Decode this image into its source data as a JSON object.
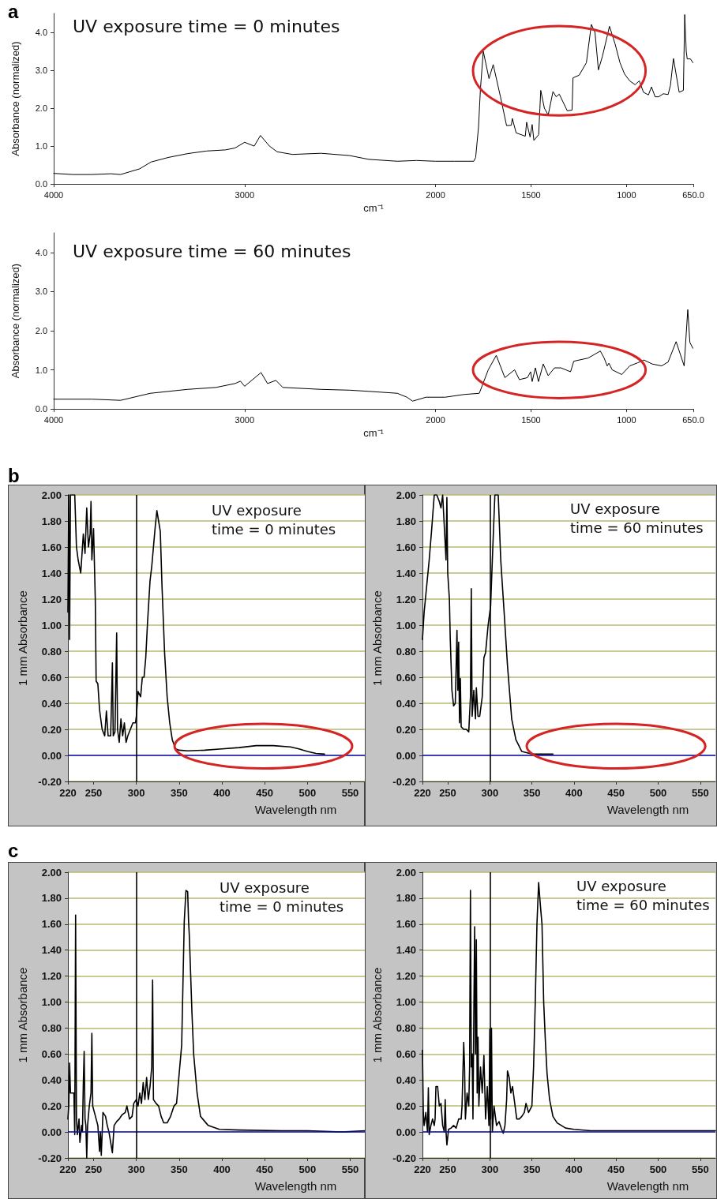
{
  "chart_data": [
    {
      "type": "line",
      "title": "UV exposure time = 0 minutes",
      "xlabel": "cm⁻¹",
      "ylabel": "Absorbance (normalized)",
      "annotations": [
        "a"
      ],
      "color": "#000000",
      "xlim": [
        4000,
        650
      ],
      "xticks": [
        4000,
        3000,
        2000,
        1500,
        1000,
        {
          "value": 650,
          "label": "650.0"
        }
      ],
      "ylim": [
        0,
        4.5
      ],
      "yticks": [
        {
          "value": 0,
          "label": "0.0"
        },
        {
          "value": 1,
          "label": "1.0"
        },
        {
          "value": 2,
          "label": "2.0"
        },
        {
          "value": 3,
          "label": "3.0"
        },
        {
          "value": 4,
          "label": "4.0"
        }
      ],
      "x": [
        4000,
        3900,
        3800,
        3700,
        3650,
        3550,
        3490,
        3400,
        3300,
        3200,
        3100,
        3050,
        3000,
        2950,
        2917,
        2870,
        2830,
        2750,
        2600,
        2450,
        2350,
        2200,
        2100,
        2000,
        1900,
        1800,
        1790,
        1775,
        1765,
        1750,
        1720,
        1698,
        1660,
        1628,
        1603,
        1598,
        1578,
        1530,
        1523,
        1505,
        1494,
        1485,
        1460,
        1449,
        1430,
        1410,
        1385,
        1368,
        1352,
        1310,
        1285,
        1280,
        1248,
        1210,
        1184,
        1165,
        1147,
        1126,
        1089,
        1060,
        1034,
        1010,
        983,
        955,
        933,
        911,
        885,
        869,
        850,
        832,
        807,
        782,
        770,
        754,
        724,
        702,
        695,
        687,
        682,
        665,
        652
      ],
      "values": [
        0.28,
        0.25,
        0.25,
        0.27,
        0.25,
        0.4,
        0.58,
        0.7,
        0.8,
        0.87,
        0.9,
        0.95,
        1.1,
        1.0,
        1.28,
        1.0,
        0.85,
        0.78,
        0.81,
        0.75,
        0.65,
        0.6,
        0.62,
        0.6,
        0.6,
        0.6,
        0.7,
        1.5,
        2.5,
        3.5,
        2.78,
        3.15,
        2.3,
        1.54,
        1.55,
        1.73,
        1.35,
        1.26,
        1.63,
        1.24,
        1.57,
        1.15,
        1.3,
        2.47,
        2.0,
        1.82,
        2.44,
        2.3,
        2.37,
        1.93,
        1.95,
        2.8,
        2.87,
        3.2,
        4.21,
        4.0,
        3.01,
        3.37,
        4.16,
        3.7,
        3.2,
        2.9,
        2.72,
        2.62,
        2.72,
        2.42,
        2.35,
        2.56,
        2.3,
        2.3,
        2.38,
        2.36,
        2.6,
        3.31,
        2.42,
        2.47,
        4.47,
        3.5,
        3.3,
        3.3,
        3.2
      ]
    },
    {
      "type": "line",
      "title": "UV exposure time = 60 minutes",
      "xlabel": "cm⁻¹",
      "ylabel": "Absorbance (normalized)",
      "color": "#000000",
      "xlim": [
        4000,
        650
      ],
      "xticks": [
        4000,
        3000,
        2000,
        1500,
        1000,
        {
          "value": 650,
          "label": "650.0"
        }
      ],
      "ylim": [
        0,
        4.5
      ],
      "yticks": [
        {
          "value": 0,
          "label": "0.0"
        },
        {
          "value": 1,
          "label": "1.0"
        },
        {
          "value": 2,
          "label": "2.0"
        },
        {
          "value": 3,
          "label": "3.0"
        },
        {
          "value": 4,
          "label": "4.0"
        }
      ],
      "x": [
        4000,
        3800,
        3650,
        3494,
        3300,
        3150,
        3050,
        3022,
        3000,
        2914,
        2880,
        2836,
        2800,
        2600,
        2450,
        2350,
        2200,
        2150,
        2120,
        2050,
        1950,
        1850,
        1771,
        1724,
        1682,
        1637,
        1586,
        1561,
        1519,
        1502,
        1494,
        1477,
        1461,
        1436,
        1410,
        1377,
        1343,
        1293,
        1276,
        1201,
        1137,
        1117,
        1101,
        1092,
        1075,
        1025,
        983,
        941,
        908,
        866,
        816,
        782,
        740,
        698,
        679,
        668,
        652
      ],
      "values": [
        0.25,
        0.25,
        0.22,
        0.4,
        0.5,
        0.55,
        0.65,
        0.71,
        0.58,
        0.93,
        0.65,
        0.73,
        0.55,
        0.5,
        0.48,
        0.45,
        0.4,
        0.3,
        0.2,
        0.3,
        0.3,
        0.37,
        0.4,
        1.0,
        1.37,
        0.8,
        1.0,
        0.75,
        0.8,
        0.95,
        0.7,
        1.05,
        0.7,
        1.15,
        0.85,
        1.05,
        1.05,
        0.95,
        1.22,
        1.3,
        1.48,
        1.3,
        1.1,
        1.17,
        1.0,
        0.88,
        1.1,
        1.18,
        1.25,
        1.15,
        1.1,
        1.2,
        1.72,
        1.1,
        2.54,
        1.7,
        1.55
      ]
    },
    {
      "type": "line",
      "title": "UV exposure",
      "subtitle": "time = 0 minutes",
      "xlabel": "Wavelength nm",
      "ylabel": "1 mm Absorbance",
      "annotations": [
        "b"
      ],
      "color": "#000000",
      "grid": "y",
      "ref_lines": [
        {
          "axis": "y",
          "value": 0,
          "color": "#1010c0"
        },
        {
          "axis": "x",
          "value": 300,
          "color": "#000000"
        }
      ],
      "xlim": [
        220,
        568
      ],
      "xticks": [
        220,
        250,
        300,
        350,
        400,
        450,
        500,
        550
      ],
      "ylim": [
        -0.2,
        2.0
      ],
      "yticks": [
        {
          "value": -0.2,
          "label": "-0.20"
        },
        {
          "value": 0,
          "label": "0.00"
        },
        {
          "value": 0.2,
          "label": "0.20"
        },
        {
          "value": 0.4,
          "label": "0.40"
        },
        {
          "value": 0.6,
          "label": "0.60"
        },
        {
          "value": 0.8,
          "label": "0.80"
        },
        {
          "value": 1,
          "label": "1.00"
        },
        {
          "value": 1.2,
          "label": "1.20"
        },
        {
          "value": 1.4,
          "label": "1.40"
        },
        {
          "value": 1.6,
          "label": "1.60"
        },
        {
          "value": 1.8,
          "label": "1.80"
        },
        {
          "value": 2,
          "label": "2.00"
        }
      ],
      "x": [
        220,
        221,
        222,
        223,
        225,
        228,
        230,
        232,
        235,
        238,
        240,
        242,
        244,
        246,
        247,
        248,
        250,
        252,
        253,
        255,
        257,
        260,
        263,
        265,
        267,
        270,
        272,
        273,
        275,
        277,
        278,
        280,
        282,
        284,
        286,
        288,
        290,
        293,
        296,
        299,
        300,
        302,
        305,
        307,
        309,
        311,
        313,
        316,
        318,
        320,
        322,
        324,
        326,
        328,
        330,
        333,
        336,
        339,
        342,
        346,
        350,
        360,
        380,
        400,
        420,
        440,
        460,
        480,
        490,
        500,
        510,
        520
      ],
      "values": [
        1.1,
        2.0,
        0.89,
        2.0,
        2.0,
        2.0,
        1.6,
        1.5,
        1.4,
        1.7,
        1.55,
        1.9,
        1.6,
        1.7,
        1.95,
        1.5,
        1.74,
        1.2,
        0.57,
        0.55,
        0.35,
        0.2,
        0.15,
        0.34,
        0.15,
        0.15,
        0.71,
        0.15,
        0.18,
        0.94,
        0.2,
        0.1,
        0.28,
        0.15,
        0.25,
        0.1,
        0.15,
        0.2,
        0.25,
        0.25,
        0.3,
        0.49,
        0.45,
        0.6,
        0.6,
        0.75,
        1.01,
        1.34,
        1.45,
        1.6,
        1.75,
        1.88,
        1.8,
        1.72,
        1.3,
        0.79,
        0.45,
        0.25,
        0.12,
        0.05,
        0.04,
        0.035,
        0.04,
        0.05,
        0.06,
        0.075,
        0.075,
        0.065,
        0.05,
        0.03,
        0.015,
        0.01
      ]
    },
    {
      "type": "line",
      "title": "UV exposure",
      "subtitle": "time = 60 minutes",
      "xlabel": "Wavelength nm",
      "ylabel": "1 mm Absorbance",
      "color": "#000000",
      "grid": "y",
      "ref_lines": [
        {
          "axis": "y",
          "value": 0,
          "color": "#1010c0"
        },
        {
          "axis": "x",
          "value": 300,
          "color": "#000000"
        }
      ],
      "xlim": [
        220,
        568
      ],
      "xticks": [
        220,
        250,
        300,
        350,
        400,
        450,
        500,
        550
      ],
      "ylim": [
        -0.2,
        2.0
      ],
      "yticks": [
        {
          "value": -0.2,
          "label": "-0.20"
        },
        {
          "value": 0,
          "label": "0.00"
        },
        {
          "value": 0.2,
          "label": "0.20"
        },
        {
          "value": 0.4,
          "label": "0.40"
        },
        {
          "value": 0.6,
          "label": "0.60"
        },
        {
          "value": 0.8,
          "label": "0.80"
        },
        {
          "value": 1,
          "label": "1.00"
        },
        {
          "value": 1.2,
          "label": "1.20"
        },
        {
          "value": 1.4,
          "label": "1.40"
        },
        {
          "value": 1.6,
          "label": "1.60"
        },
        {
          "value": 1.8,
          "label": "1.80"
        },
        {
          "value": 2,
          "label": "2.00"
        }
      ],
      "x": [
        220,
        222,
        225,
        228,
        231,
        234,
        237,
        240,
        242,
        244,
        246,
        248,
        249,
        250,
        252,
        253,
        255,
        257,
        259,
        261,
        262,
        263,
        264,
        265,
        266,
        269,
        272,
        275,
        277,
        278,
        279,
        281,
        283,
        284,
        286,
        288,
        291,
        293,
        295,
        298,
        301,
        303,
        306,
        310,
        313,
        317,
        321,
        326,
        331,
        338,
        350,
        375
      ],
      "values": [
        0.89,
        1.1,
        1.3,
        1.5,
        1.74,
        2.0,
        2.0,
        1.95,
        1.9,
        2.0,
        1.75,
        1.5,
        1.98,
        1.4,
        1.2,
        0.9,
        0.5,
        0.38,
        0.4,
        0.96,
        0.5,
        0.87,
        0.25,
        0.59,
        0.22,
        0.2,
        0.2,
        0.18,
        0.45,
        1.28,
        0.3,
        0.5,
        0.28,
        0.52,
        0.3,
        0.3,
        0.45,
        0.75,
        0.79,
        1.0,
        1.15,
        1.5,
        2.0,
        2.0,
        1.5,
        1.1,
        0.69,
        0.28,
        0.12,
        0.03,
        0.01,
        0.01
      ]
    },
    {
      "type": "line",
      "title": "UV exposure",
      "subtitle": "time = 0 minutes",
      "xlabel": "Wavelength nm",
      "ylabel": "1 mm Absorbance",
      "annotations": [
        "c"
      ],
      "color": "#000000",
      "grid": "y",
      "ref_lines": [
        {
          "axis": "y",
          "value": 0,
          "color": "#1010c0"
        },
        {
          "axis": "x",
          "value": 300,
          "color": "#000000"
        }
      ],
      "xlim": [
        220,
        568
      ],
      "xticks": [
        220,
        250,
        300,
        350,
        400,
        450,
        500,
        550
      ],
      "ylim": [
        -0.2,
        2.0
      ],
      "yticks": [
        {
          "value": -0.2,
          "label": "-0.20"
        },
        {
          "value": 0,
          "label": "0.00"
        },
        {
          "value": 0.2,
          "label": "0.20"
        },
        {
          "value": 0.4,
          "label": "0.40"
        },
        {
          "value": 0.6,
          "label": "0.60"
        },
        {
          "value": 0.8,
          "label": "0.80"
        },
        {
          "value": 1,
          "label": "1.00"
        },
        {
          "value": 1.2,
          "label": "1.20"
        },
        {
          "value": 1.4,
          "label": "1.40"
        },
        {
          "value": 1.6,
          "label": "1.60"
        },
        {
          "value": 1.8,
          "label": "1.80"
        },
        {
          "value": 2,
          "label": "2.00"
        }
      ],
      "x": [
        220,
        221,
        222,
        223,
        225,
        227,
        228,
        229,
        230,
        231,
        233,
        234,
        236,
        237,
        238,
        239,
        240,
        241,
        242,
        243,
        245,
        247,
        248,
        249,
        251,
        253,
        255,
        257,
        258,
        259,
        261,
        264,
        266,
        268,
        272,
        274,
        277,
        280,
        283,
        287,
        289,
        292,
        295,
        297,
        300,
        302,
        304,
        306,
        308,
        310,
        312,
        314,
        316,
        318,
        319,
        320,
        323,
        326,
        329,
        332,
        336,
        340,
        344,
        347,
        353,
        356,
        358,
        360,
        361,
        362,
        365,
        367,
        371,
        375,
        384,
        397,
        420,
        470,
        500,
        540,
        568
      ],
      "values": [
        0.1,
        0.2,
        0.53,
        0.3,
        0.3,
        0.3,
        -0.02,
        1.67,
        0.1,
        -0.02,
        0.1,
        -0.08,
        0.05,
        0.0,
        0.37,
        0.62,
        0.1,
        0.05,
        -0.2,
        0.05,
        0.2,
        0.3,
        0.76,
        0.2,
        0.15,
        0.1,
        0.05,
        -0.15,
        0.0,
        -0.18,
        0.15,
        0.12,
        0.05,
        0.0,
        -0.16,
        0.05,
        0.08,
        0.1,
        0.13,
        0.15,
        0.2,
        0.1,
        0.12,
        0.22,
        0.25,
        0.2,
        0.3,
        0.22,
        0.38,
        0.25,
        0.42,
        0.25,
        0.35,
        0.5,
        1.17,
        0.25,
        0.22,
        0.2,
        0.12,
        0.07,
        0.07,
        0.12,
        0.2,
        0.22,
        0.67,
        1.62,
        1.86,
        1.85,
        1.63,
        1.5,
        0.92,
        0.6,
        0.3,
        0.12,
        0.05,
        0.02,
        0.015,
        0.01,
        0.01,
        0.0,
        0.01
      ]
    },
    {
      "type": "line",
      "title": "UV exposure",
      "subtitle": "time = 60 minutes",
      "xlabel": "Wavelength nm",
      "ylabel": "1 mm Absorbance",
      "color": "#000000",
      "grid": "y",
      "ref_lines": [
        {
          "axis": "y",
          "value": 0,
          "color": "#1010c0"
        },
        {
          "axis": "x",
          "value": 300,
          "color": "#000000"
        }
      ],
      "xlim": [
        220,
        568
      ],
      "xticks": [
        220,
        250,
        300,
        350,
        400,
        450,
        500,
        550
      ],
      "ylim": [
        -0.2,
        2.0
      ],
      "yticks": [
        {
          "value": -0.2,
          "label": "-0.20"
        },
        {
          "value": 0,
          "label": "0.00"
        },
        {
          "value": 0.2,
          "label": "0.20"
        },
        {
          "value": 0.4,
          "label": "0.40"
        },
        {
          "value": 0.6,
          "label": "0.60"
        },
        {
          "value": 0.8,
          "label": "0.80"
        },
        {
          "value": 1,
          "label": "1.00"
        },
        {
          "value": 1.2,
          "label": "1.20"
        },
        {
          "value": 1.4,
          "label": "1.40"
        },
        {
          "value": 1.6,
          "label": "1.60"
        },
        {
          "value": 1.8,
          "label": "1.80"
        },
        {
          "value": 2,
          "label": "2.00"
        }
      ],
      "x": [
        220,
        221,
        222,
        224,
        226,
        227,
        228,
        230,
        232,
        234,
        235,
        236,
        238,
        240,
        242,
        244,
        246,
        247,
        248,
        249,
        251,
        254,
        257,
        260,
        263,
        266,
        267,
        269,
        270,
        271,
        273,
        275,
        276,
        277,
        278,
        279,
        280,
        281,
        282,
        283,
        284,
        285,
        286,
        287,
        289,
        291,
        293,
        295,
        297,
        299,
        300,
        301,
        302,
        303,
        305,
        308,
        311,
        314,
        316,
        318,
        320,
        321,
        323,
        325,
        327,
        330,
        332,
        335,
        338,
        341,
        343,
        346,
        350,
        352,
        354,
        356,
        358,
        360,
        362,
        364,
        366,
        368,
        371,
        375,
        380,
        390,
        400,
        420,
        470,
        568
      ],
      "values": [
        0.63,
        0.15,
        0.05,
        0.15,
        0.0,
        0.34,
        -0.02,
        0.05,
        0.1,
        0.05,
        0.1,
        0.35,
        0.35,
        0.2,
        0.22,
        0.05,
        0.0,
        0.25,
        0.0,
        -0.1,
        0.02,
        0.03,
        0.05,
        0.03,
        0.1,
        0.1,
        0.2,
        0.69,
        0.5,
        0.1,
        0.3,
        0.2,
        0.5,
        1.86,
        0.5,
        0.6,
        0.1,
        0.9,
        1.58,
        0.6,
        1.48,
        0.3,
        0.73,
        0.2,
        0.5,
        0.3,
        0.59,
        0.1,
        0.35,
        0.05,
        0.79,
        0.1,
        0.8,
        0.0,
        0.2,
        0.05,
        0.08,
        0.02,
        -0.01,
        0.05,
        0.25,
        0.47,
        0.42,
        0.3,
        0.35,
        0.2,
        0.1,
        0.1,
        0.12,
        0.15,
        0.22,
        0.15,
        0.2,
        0.5,
        1.0,
        1.6,
        1.92,
        1.75,
        1.6,
        1.0,
        0.7,
        0.45,
        0.25,
        0.12,
        0.07,
        0.03,
        0.02,
        0.01,
        0.01,
        0.01
      ]
    }
  ]
}
